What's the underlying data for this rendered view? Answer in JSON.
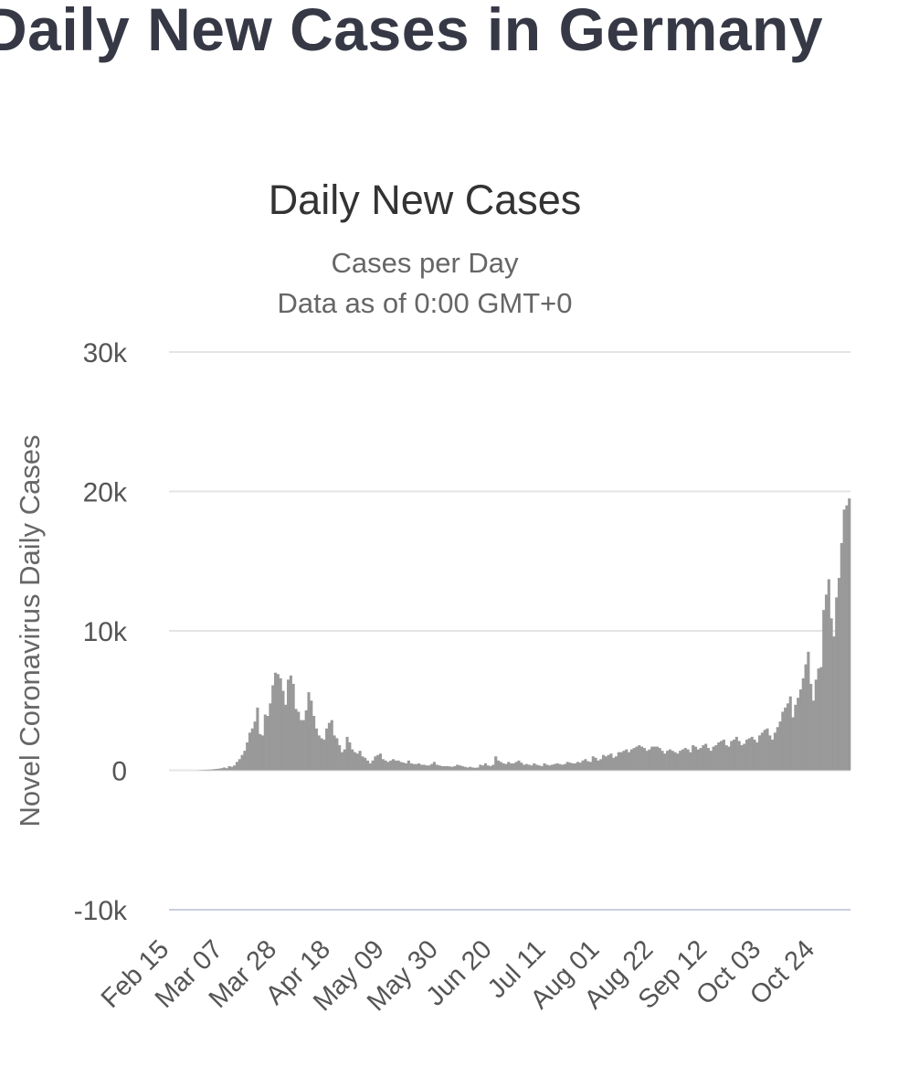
{
  "page": {
    "heading": "Daily New Cases in Germany"
  },
  "chart_data": {
    "type": "bar",
    "title": "Daily New Cases",
    "subtitle_lines": [
      "Cases per Day",
      "Data as of 0:00 GMT+0"
    ],
    "ylabel": "Novel Coronavirus Daily Cases",
    "xlabel": "",
    "ylim": [
      -10000,
      30000
    ],
    "yticks": [
      -10000,
      0,
      10000,
      20000,
      30000
    ],
    "ytick_labels": [
      "-10k",
      "0",
      "10k",
      "20k",
      "30k"
    ],
    "xtick_labels": [
      "Feb 15",
      "Mar 07",
      "Mar 28",
      "Apr 18",
      "May 09",
      "May 30",
      "Jun 20",
      "Jul 11",
      "Aug 01",
      "Aug 22",
      "Sep 12",
      "Oct 03",
      "Oct 24"
    ],
    "x_start": "Feb 15",
    "x_end": "Oct 29",
    "grid": true,
    "legend": "none",
    "colors": {
      "bar": "#999999",
      "grid": "#e4e4e4",
      "zero_line": "#d0d0d0",
      "axis_text": "#555555",
      "title": "#333333"
    },
    "series": [
      {
        "values": [
          0,
          0,
          0,
          0,
          0,
          0,
          0,
          0,
          0,
          0,
          0,
          10,
          20,
          30,
          40,
          50,
          60,
          80,
          100,
          120,
          150,
          200,
          150,
          300,
          250,
          350,
          600,
          800,
          1100,
          1400,
          2000,
          2700,
          3000,
          3500,
          4500,
          2600,
          2500,
          4000,
          3900,
          4800,
          6100,
          7000,
          6900,
          6600,
          5700,
          4700,
          6500,
          6800,
          6200,
          4400,
          4200,
          3600,
          3600,
          4300,
          5600,
          5000,
          3900,
          3000,
          2500,
          2300,
          2200,
          3000,
          3400,
          3600,
          2500,
          2300,
          1800,
          1300,
          1500,
          2400,
          2000,
          1500,
          1300,
          1200,
          1400,
          1000,
          900,
          700,
          500,
          700,
          1000,
          1100,
          1200,
          800,
          700,
          600,
          700,
          800,
          700,
          700,
          600,
          550,
          500,
          700,
          500,
          450,
          450,
          500,
          400,
          400,
          350,
          350,
          450,
          600,
          400,
          350,
          300,
          300,
          300,
          280,
          250,
          300,
          400,
          350,
          300,
          250,
          200,
          250,
          200,
          180,
          200,
          400,
          350,
          500,
          350,
          300,
          400,
          1000,
          700,
          600,
          500,
          450,
          600,
          500,
          500,
          600,
          700,
          550,
          400,
          450,
          400,
          350,
          500,
          400,
          350,
          300,
          500,
          400,
          350,
          400,
          450,
          500,
          450,
          400,
          450,
          600,
          550,
          500,
          500,
          600,
          550,
          700,
          800,
          650,
          600,
          1000,
          900,
          700,
          800,
          1100,
          1000,
          1100,
          1200,
          900,
          1000,
          1300,
          1300,
          1400,
          1500,
          1300,
          1500,
          1600,
          1700,
          1800,
          1700,
          1600,
          1400,
          1500,
          1700,
          1700,
          1700,
          1600,
          1400,
          1200,
          1400,
          1500,
          1400,
          1300,
          1200,
          1400,
          1500,
          1600,
          1500,
          1300,
          1800,
          1700,
          1500,
          1600,
          1800,
          1900,
          1600,
          1400,
          1700,
          1800,
          2000,
          2100,
          2200,
          1800,
          1700,
          2100,
          2200,
          2400,
          2100,
          1800,
          1900,
          2200,
          2300,
          2400,
          2200,
          2000,
          2500,
          2700,
          2900,
          3000,
          2500,
          2200,
          2700,
          3100,
          3500,
          4200,
          4500,
          4800,
          5300,
          3800,
          4700,
          5200,
          5800,
          6600,
          7600,
          8500,
          6200,
          5000,
          6500,
          7300,
          7400,
          11500,
          12600,
          13700,
          10900,
          9600,
          12400,
          13800,
          16300,
          18700,
          19000,
          19500
        ]
      }
    ]
  }
}
